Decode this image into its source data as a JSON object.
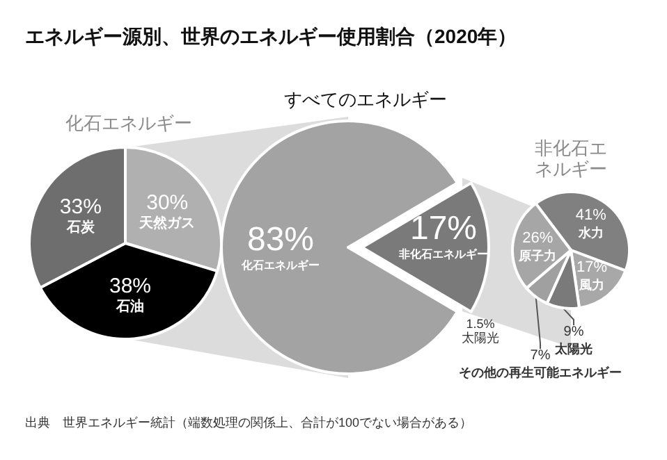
{
  "chart_data": [
    {
      "type": "pie",
      "title": "化石エネルギー",
      "categories": [
        "天然ガス",
        "石油",
        "石炭"
      ],
      "values": [
        30,
        38,
        33
      ],
      "value_labels": [
        "30%",
        "38%",
        "33%"
      ],
      "colors": [
        "#b0b0b0",
        "#000000",
        "#6e6e6e"
      ]
    },
    {
      "type": "pie",
      "title": "エネルギー源別、世界のエネルギー使用割合（2020年）",
      "subtitle": "すべてのエネルギー",
      "categories": [
        "化石エネルギー",
        "非化石エネルギー"
      ],
      "values": [
        83,
        17
      ],
      "value_labels": [
        "83%",
        "17%"
      ],
      "colors": [
        "#a3a3a3",
        "#7a7a7a"
      ],
      "annotations": [
        "1.5% 太陽光",
        "出典　世界エネルギー統計（端数処理の関係上、合計が100でない場合がある）"
      ]
    },
    {
      "type": "pie",
      "title": "非化石エネルギー",
      "categories": [
        "水力",
        "風力",
        "太陽光",
        "その他の再生可能エネルギー",
        "原子力"
      ],
      "values": [
        41,
        17,
        9,
        7,
        26
      ],
      "value_labels": [
        "41%",
        "17%",
        "9%",
        "7%",
        "26%"
      ],
      "colors": [
        "#808080",
        "#a8a8a8",
        "#7a7a7a",
        "#a0a0a0",
        "#a6a6a6"
      ]
    }
  ]
}
